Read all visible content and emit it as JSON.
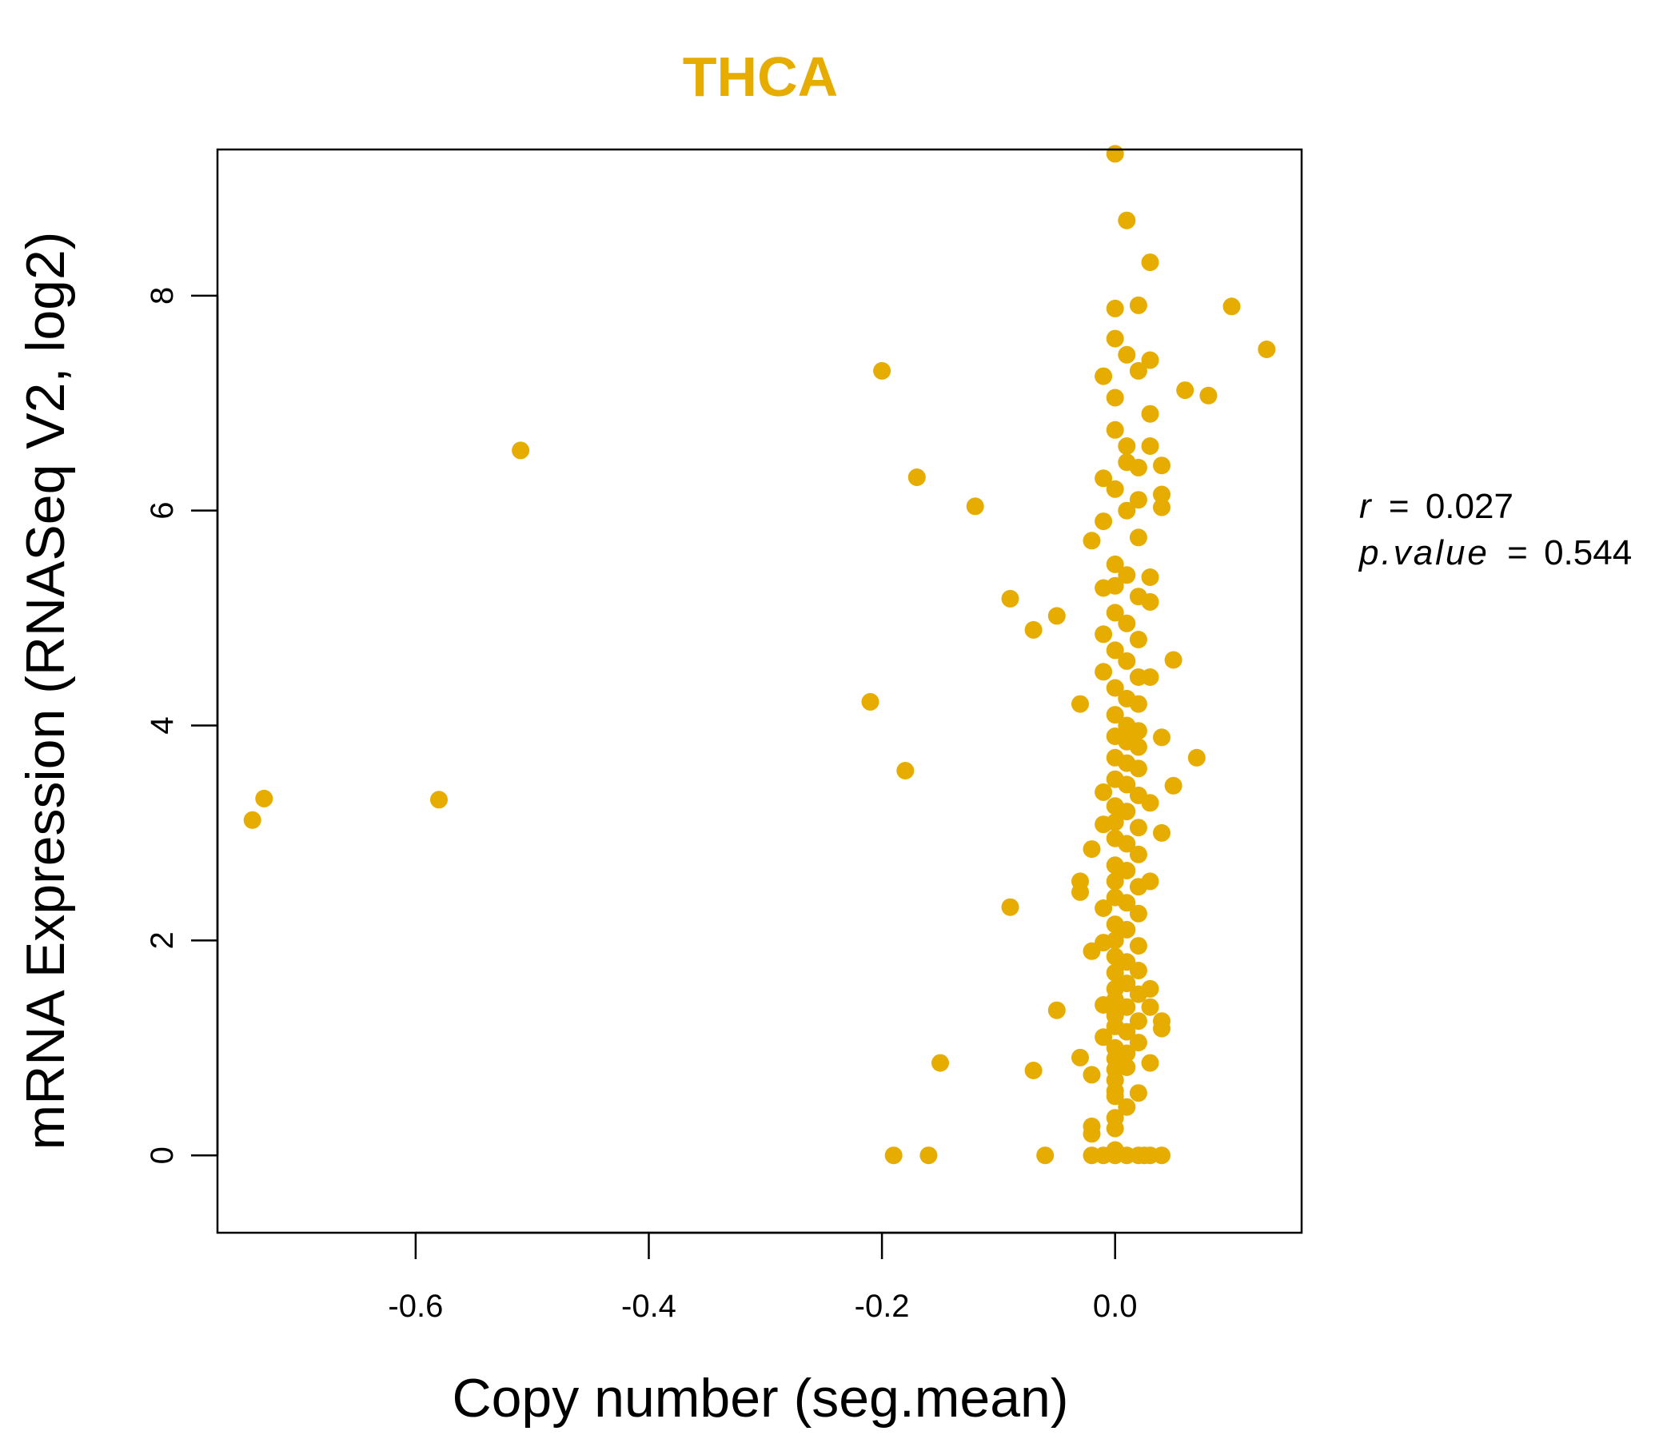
{
  "chart_data": {
    "type": "scatter",
    "title": "THCA",
    "xlabel": "Copy number (seg.mean)",
    "ylabel": "mRNA Expression (RNASeq V2, log2)",
    "xlim": [
      -0.77,
      0.16
    ],
    "ylim": [
      -0.72,
      9.36
    ],
    "x_ticks": [
      -0.6,
      -0.4,
      -0.2,
      0.0
    ],
    "x_tick_labels": [
      "-0.6",
      "-0.4",
      "-0.2",
      "0.0"
    ],
    "y_ticks": [
      0,
      2,
      4,
      6,
      8
    ],
    "y_tick_labels": [
      "0",
      "2",
      "4",
      "6",
      "8"
    ],
    "point_color": "#E6AC00",
    "title_color": "#E6AC00",
    "grid": false,
    "legend": "none",
    "annotation": {
      "r_label": "r",
      "r_value": "0.027",
      "p_label": "p.value",
      "p_value": "0.544",
      "equals": "="
    },
    "points": [
      [
        -0.74,
        3.12
      ],
      [
        -0.73,
        3.32
      ],
      [
        -0.58,
        3.31
      ],
      [
        -0.51,
        6.56
      ],
      [
        -0.2,
        7.3
      ],
      [
        -0.21,
        4.22
      ],
      [
        -0.17,
        6.31
      ],
      [
        -0.18,
        3.58
      ],
      [
        -0.12,
        6.04
      ],
      [
        -0.09,
        5.18
      ],
      [
        -0.05,
        5.02
      ],
      [
        -0.07,
        4.89
      ],
      [
        -0.09,
        2.31
      ],
      [
        -0.05,
        1.35
      ],
      [
        -0.15,
        0.86
      ],
      [
        -0.07,
        0.79
      ],
      [
        -0.19,
        0.0
      ],
      [
        -0.16,
        0.0
      ],
      [
        -0.06,
        0.0
      ],
      [
        -0.03,
        0.91
      ],
      [
        -0.03,
        4.2
      ],
      [
        -0.03,
        2.55
      ],
      [
        -0.03,
        2.45
      ],
      [
        0.0,
        9.32
      ],
      [
        0.01,
        8.7
      ],
      [
        0.03,
        8.31
      ],
      [
        0.0,
        7.88
      ],
      [
        0.02,
        7.91
      ],
      [
        0.0,
        7.6
      ],
      [
        0.01,
        7.45
      ],
      [
        0.03,
        7.4
      ],
      [
        -0.01,
        7.25
      ],
      [
        0.02,
        7.3
      ],
      [
        0.0,
        7.05
      ],
      [
        0.03,
        6.9
      ],
      [
        0.0,
        6.75
      ],
      [
        0.01,
        6.6
      ],
      [
        0.03,
        6.6
      ],
      [
        0.01,
        6.45
      ],
      [
        -0.01,
        6.3
      ],
      [
        0.02,
        6.4
      ],
      [
        0.04,
        6.42
      ],
      [
        0.0,
        6.2
      ],
      [
        0.02,
        6.1
      ],
      [
        0.04,
        6.15
      ],
      [
        0.04,
        6.03
      ],
      [
        0.01,
        6.0
      ],
      [
        -0.01,
        5.9
      ],
      [
        -0.02,
        5.72
      ],
      [
        0.02,
        5.75
      ],
      [
        0.0,
        5.5
      ],
      [
        0.01,
        5.4
      ],
      [
        0.03,
        5.38
      ],
      [
        0.0,
        5.3
      ],
      [
        -0.01,
        5.28
      ],
      [
        0.02,
        5.2
      ],
      [
        0.03,
        5.15
      ],
      [
        0.0,
        5.05
      ],
      [
        0.01,
        4.95
      ],
      [
        -0.01,
        4.85
      ],
      [
        0.02,
        4.8
      ],
      [
        0.0,
        4.7
      ],
      [
        0.01,
        4.6
      ],
      [
        0.05,
        4.61
      ],
      [
        -0.01,
        4.5
      ],
      [
        0.02,
        4.45
      ],
      [
        0.03,
        4.45
      ],
      [
        0.0,
        4.35
      ],
      [
        0.01,
        4.25
      ],
      [
        0.02,
        4.2
      ],
      [
        0.0,
        4.1
      ],
      [
        0.01,
        4.0
      ],
      [
        0.02,
        3.95
      ],
      [
        0.0,
        3.9
      ],
      [
        0.01,
        3.85
      ],
      [
        0.04,
        3.89
      ],
      [
        0.02,
        3.8
      ],
      [
        0.0,
        3.7
      ],
      [
        0.01,
        3.65
      ],
      [
        0.07,
        3.7
      ],
      [
        0.02,
        3.6
      ],
      [
        0.0,
        3.5
      ],
      [
        0.01,
        3.45
      ],
      [
        0.05,
        3.44
      ],
      [
        -0.01,
        3.38
      ],
      [
        0.02,
        3.35
      ],
      [
        0.0,
        3.25
      ],
      [
        0.01,
        3.2
      ],
      [
        0.03,
        3.28
      ],
      [
        0.0,
        3.1
      ],
      [
        -0.01,
        3.08
      ],
      [
        0.02,
        3.05
      ],
      [
        0.0,
        2.95
      ],
      [
        0.01,
        2.9
      ],
      [
        0.04,
        3.0
      ],
      [
        -0.02,
        2.85
      ],
      [
        0.02,
        2.8
      ],
      [
        0.0,
        2.7
      ],
      [
        0.01,
        2.65
      ],
      [
        0.0,
        2.55
      ],
      [
        0.02,
        2.5
      ],
      [
        0.03,
        2.55
      ],
      [
        0.0,
        2.4
      ],
      [
        0.01,
        2.35
      ],
      [
        -0.01,
        2.3
      ],
      [
        0.02,
        2.25
      ],
      [
        0.0,
        2.15
      ],
      [
        0.01,
        2.1
      ],
      [
        0.0,
        2.0
      ],
      [
        -0.01,
        1.98
      ],
      [
        0.02,
        1.95
      ],
      [
        -0.02,
        1.9
      ],
      [
        0.0,
        1.85
      ],
      [
        0.01,
        1.8
      ],
      [
        0.0,
        1.7
      ],
      [
        0.02,
        1.72
      ],
      [
        0.01,
        1.6
      ],
      [
        0.0,
        1.55
      ],
      [
        0.02,
        1.5
      ],
      [
        0.03,
        1.55
      ],
      [
        0.0,
        1.45
      ],
      [
        -0.01,
        1.4
      ],
      [
        0.01,
        1.38
      ],
      [
        0.03,
        1.38
      ],
      [
        0.0,
        1.3
      ],
      [
        0.02,
        1.25
      ],
      [
        0.04,
        1.25
      ],
      [
        0.0,
        1.2
      ],
      [
        0.04,
        1.18
      ],
      [
        0.01,
        1.15
      ],
      [
        -0.01,
        1.1
      ],
      [
        0.02,
        1.05
      ],
      [
        0.0,
        1.0
      ],
      [
        0.01,
        0.95
      ],
      [
        0.0,
        0.9
      ],
      [
        0.03,
        0.86
      ],
      [
        0.0,
        0.8
      ],
      [
        0.01,
        0.82
      ],
      [
        0.0,
        0.7
      ],
      [
        -0.02,
        0.75
      ],
      [
        0.0,
        0.6
      ],
      [
        0.02,
        0.58
      ],
      [
        0.0,
        0.55
      ],
      [
        0.01,
        0.45
      ],
      [
        0.0,
        0.35
      ],
      [
        -0.02,
        0.27
      ],
      [
        0.0,
        0.25
      ],
      [
        -0.02,
        0.2
      ],
      [
        0.0,
        0.05
      ],
      [
        -0.02,
        0.0
      ],
      [
        -0.01,
        0.0
      ],
      [
        0.0,
        0.0
      ],
      [
        0.01,
        0.0
      ],
      [
        0.02,
        0.0
      ],
      [
        0.03,
        0.0
      ],
      [
        0.04,
        0.0
      ],
      [
        0.025,
        0.0
      ],
      [
        0.06,
        7.12
      ],
      [
        0.08,
        7.07
      ],
      [
        0.1,
        7.9
      ],
      [
        0.13,
        7.5
      ]
    ]
  }
}
